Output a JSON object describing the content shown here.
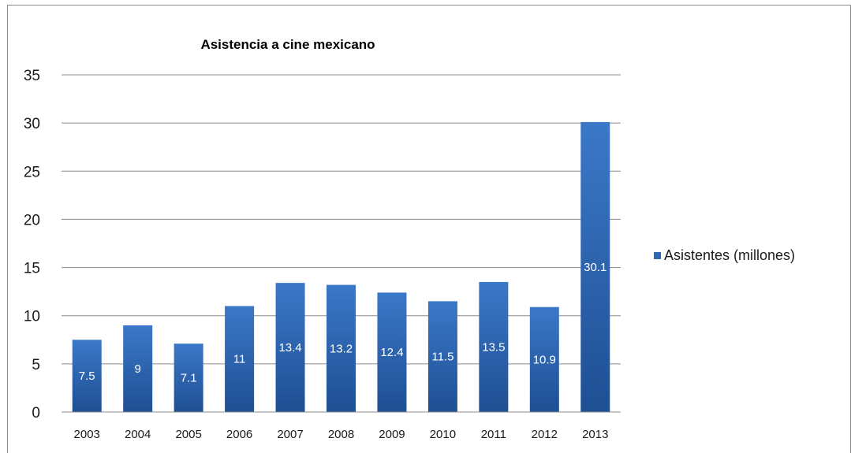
{
  "chart_data": {
    "type": "bar",
    "title": "Asistencia a cine mexicano",
    "categories": [
      "2003",
      "2004",
      "2005",
      "2006",
      "2007",
      "2008",
      "2009",
      "2010",
      "2011",
      "2012",
      "2013"
    ],
    "series": [
      {
        "name": "Asistentes (millones)",
        "values": [
          7.5,
          9,
          7.1,
          11,
          13.4,
          13.2,
          12.4,
          11.5,
          13.5,
          10.9,
          30.1
        ],
        "color": "#2f68b4"
      }
    ],
    "ylim": [
      0,
      35
    ],
    "yticks": [
      "0",
      "5",
      "10",
      "15",
      "20",
      "25",
      "30",
      "35"
    ],
    "grid": true,
    "legend": "right",
    "data_labels": true
  }
}
